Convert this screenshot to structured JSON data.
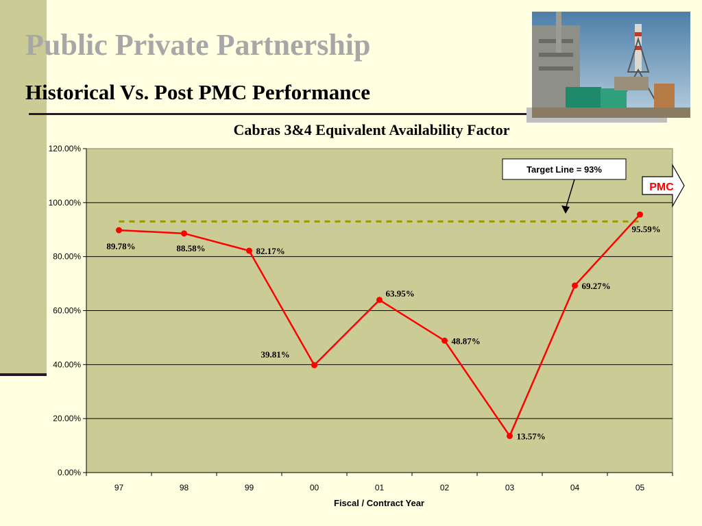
{
  "header": {
    "title": "Public Private Partnership",
    "subtitle": "Historical Vs. Post PMC Performance"
  },
  "photo": {
    "icon": "power-plant-photo"
  },
  "chart_data": {
    "type": "line",
    "title": "Cabras 3&4 Equivalent Availability Factor",
    "xlabel": "Fiscal / Contract Year",
    "ylabel": "",
    "categories": [
      "97",
      "98",
      "99",
      "00",
      "01",
      "02",
      "03",
      "04",
      "05"
    ],
    "series": [
      {
        "values": [
          89.78,
          88.58,
          82.17,
          39.81,
          63.95,
          48.87,
          13.57,
          69.27,
          95.59
        ],
        "data_labels": [
          "89.78%",
          "88.58%",
          "82.17%",
          "39.81%",
          "63.95%",
          "48.87%",
          "13.57%",
          "69.27%",
          "95.59%"
        ],
        "color": "#ff0000"
      }
    ],
    "target": {
      "value": 93,
      "label": "Target Line = 93%",
      "color": "#999900"
    },
    "ylim": [
      0,
      120
    ],
    "yticks": [
      0,
      20,
      40,
      60,
      80,
      100,
      120
    ],
    "ytick_labels": [
      "0.00%",
      "20.00%",
      "40.00%",
      "60.00%",
      "80.00%",
      "100.00%",
      "120.00%"
    ],
    "grid": true,
    "plot_background": "#cbcb95",
    "pmc_label": "PMC",
    "pmc_color": "#ff0000"
  }
}
